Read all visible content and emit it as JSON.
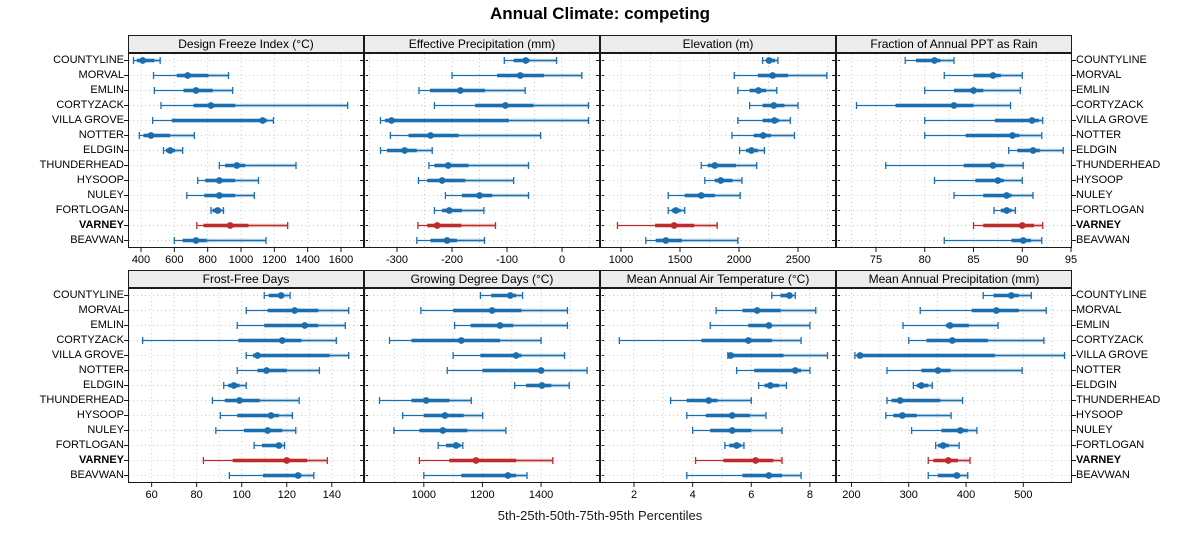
{
  "title": "Annual Climate: competing",
  "footer": "5th-25th-50th-75th-95th Percentiles",
  "colors": {
    "series": "#1b6fae",
    "highlight_series": "#bd2b2b",
    "strip_bg": "#ececec",
    "panel_border": "#1a1a1a",
    "grid": "#c8c8c8",
    "axis_text": "#000000"
  },
  "chart_data": {
    "type": "interval-dotplot",
    "title": "Annual Climate: competing",
    "footnote": "5th-25th-50th-75th-95th Percentiles",
    "percentiles": [
      "5th",
      "25th",
      "50th",
      "75th",
      "95th"
    ],
    "grid": true,
    "legend_position": "none",
    "categories": [
      "COUNTYLINE",
      "MORVAL",
      "EMLIN",
      "CORTYZACK",
      "VILLA GROVE",
      "NOTTER",
      "ELDGIN",
      "THUNDERHEAD",
      "HYSOOP",
      "NULEY",
      "FORTLOGAN",
      "VARNEY",
      "BEAVWAN"
    ],
    "highlight_category": "VARNEY",
    "panels": [
      {
        "title": "Design Freeze Index (°C)",
        "grid_row": 0,
        "grid_col": 0,
        "xlim": [
          322,
          1738
        ],
        "ticks": [
          400,
          600,
          800,
          1000,
          1200,
          1400,
          1600
        ],
        "grid_step": 200,
        "values": [
          [
            355,
            375,
            410,
            480,
            515
          ],
          [
            475,
            615,
            680,
            805,
            925
          ],
          [
            480,
            655,
            730,
            830,
            950
          ],
          [
            520,
            715,
            820,
            965,
            1640
          ],
          [
            470,
            585,
            1130,
            1155,
            1195
          ],
          [
            390,
            415,
            460,
            575,
            720
          ],
          [
            535,
            550,
            575,
            605,
            650
          ],
          [
            870,
            905,
            975,
            1025,
            1330
          ],
          [
            740,
            785,
            870,
            965,
            1105
          ],
          [
            675,
            780,
            870,
            965,
            1080
          ],
          [
            820,
            830,
            860,
            880,
            895
          ],
          [
            735,
            775,
            935,
            1045,
            1280
          ],
          [
            600,
            650,
            730,
            795,
            1150
          ]
        ]
      },
      {
        "title": "Effective Precipitation (mm)",
        "grid_row": 0,
        "grid_col": 1,
        "xlim": [
          -360,
          69
        ],
        "ticks": [
          -300,
          -200,
          -100,
          0
        ],
        "grid_step": 50,
        "values": [
          [
            -105,
            -88,
            -66,
            -59,
            -10
          ],
          [
            -200,
            -118,
            -76,
            -33,
            36
          ],
          [
            -260,
            -240,
            -185,
            -140,
            -67
          ],
          [
            -232,
            -158,
            -103,
            -52,
            48
          ],
          [
            -330,
            -322,
            -310,
            -97,
            48
          ],
          [
            -312,
            -279,
            -239,
            -188,
            -39
          ],
          [
            -330,
            -318,
            -286,
            -264,
            -236
          ],
          [
            -242,
            -232,
            -207,
            -170,
            -61
          ],
          [
            -261,
            -245,
            -218,
            -176,
            -88
          ],
          [
            -212,
            -182,
            -150,
            -127,
            -61
          ],
          [
            -232,
            -218,
            -205,
            -182,
            -142
          ],
          [
            -262,
            -245,
            -227,
            -183,
            -121
          ],
          [
            -264,
            -239,
            -209,
            -191,
            -141
          ]
        ]
      },
      {
        "title": "Elevation (m)",
        "grid_row": 0,
        "grid_col": 2,
        "xlim": [
          822,
          2822
        ],
        "ticks": [
          1000,
          1500,
          2000,
          2500
        ],
        "grid_step": 250,
        "values": [
          [
            2200,
            2230,
            2255,
            2305,
            2330
          ],
          [
            1960,
            2160,
            2285,
            2415,
            2745
          ],
          [
            1990,
            2090,
            2165,
            2230,
            2320
          ],
          [
            2090,
            2200,
            2295,
            2385,
            2500
          ],
          [
            1990,
            2200,
            2300,
            2340,
            2435
          ],
          [
            1940,
            2125,
            2205,
            2270,
            2470
          ],
          [
            2005,
            2060,
            2105,
            2160,
            2215
          ],
          [
            1680,
            1735,
            1795,
            1975,
            2150
          ],
          [
            1710,
            1795,
            1845,
            1945,
            2025
          ],
          [
            1400,
            1540,
            1680,
            1795,
            2010
          ],
          [
            1400,
            1430,
            1465,
            1505,
            1540
          ],
          [
            970,
            1290,
            1450,
            1620,
            1815
          ],
          [
            1210,
            1295,
            1380,
            1515,
            1990
          ]
        ]
      },
      {
        "title": "Fraction of Annual PPT as Rain",
        "grid_row": 0,
        "grid_col": 3,
        "xlim": [
          70.9,
          95.1
        ],
        "ticks": [
          75,
          80,
          85,
          90,
          95
        ],
        "grid_step": 2.5,
        "values": [
          [
            78,
            79.1,
            81,
            81.6,
            83
          ],
          [
            82,
            85,
            87,
            87.8,
            90
          ],
          [
            80,
            83,
            85,
            86,
            89.8
          ],
          [
            73,
            77,
            83,
            85,
            88.8
          ],
          [
            80,
            87.2,
            91,
            91.7,
            92.1
          ],
          [
            80,
            84.2,
            89,
            89.7,
            92
          ],
          [
            88.6,
            89.5,
            91.1,
            91.8,
            94.2
          ],
          [
            76,
            84,
            87,
            88.1,
            90.1
          ],
          [
            81,
            85.2,
            87.5,
            88.1,
            90
          ],
          [
            83,
            86,
            88.4,
            88.9,
            91.1
          ],
          [
            87.1,
            87.8,
            88.4,
            88.9,
            89.3
          ],
          [
            85,
            86,
            90,
            91.2,
            92.1
          ],
          [
            82,
            88.9,
            90.1,
            90.9,
            92
          ]
        ]
      },
      {
        "title": "Frost-Free Days",
        "grid_row": 1,
        "grid_col": 0,
        "xlim": [
          49.5,
          154.3
        ],
        "ticks": [
          60,
          80,
          100,
          120,
          140
        ],
        "grid_step": 10,
        "values": [
          [
            110,
            112,
            117.5,
            119,
            121.5
          ],
          [
            102,
            111.5,
            123.5,
            134,
            147.5
          ],
          [
            98,
            110,
            128,
            134,
            146
          ],
          [
            56,
            98.5,
            118,
            126.5,
            142
          ],
          [
            102,
            105,
            107,
            139,
            147.5
          ],
          [
            98,
            107,
            111,
            120,
            134.5
          ],
          [
            92,
            94,
            96.5,
            99,
            102
          ],
          [
            87,
            92.5,
            99,
            108,
            125.5
          ],
          [
            90.5,
            98,
            113,
            116.5,
            122.5
          ],
          [
            88.5,
            101,
            111.5,
            118,
            124
          ],
          [
            105.5,
            109,
            116.5,
            117.5,
            119
          ],
          [
            83,
            96,
            120,
            129,
            138
          ],
          [
            94.5,
            109.5,
            125,
            126.5,
            132
          ]
        ]
      },
      {
        "title": "Growing Degree Days (°C)",
        "grid_row": 1,
        "grid_col": 1,
        "xlim": [
          796,
          1601
        ],
        "ticks": [
          1000,
          1200,
          1400
        ],
        "grid_step": 100,
        "values": [
          [
            1193,
            1230,
            1295,
            1315,
            1337
          ],
          [
            990,
            1100,
            1233,
            1333,
            1490
          ],
          [
            1105,
            1160,
            1260,
            1305,
            1490
          ],
          [
            883,
            958,
            1128,
            1260,
            1400
          ],
          [
            1100,
            1193,
            1315,
            1333,
            1480
          ],
          [
            1080,
            1200,
            1400,
            1410,
            1557
          ],
          [
            1310,
            1349,
            1403,
            1435,
            1496
          ],
          [
            849,
            958,
            1008,
            1087,
            1162
          ],
          [
            928,
            1000,
            1072,
            1136,
            1201
          ],
          [
            898,
            985,
            1065,
            1148,
            1280
          ],
          [
            1049,
            1076,
            1110,
            1125,
            1133
          ],
          [
            985,
            1087,
            1178,
            1315,
            1440
          ],
          [
            1000,
            1128,
            1287,
            1315,
            1352
          ]
        ]
      },
      {
        "title": "Mean Annual Air Temperature (°C)",
        "grid_row": 1,
        "grid_col": 2,
        "xlim": [
          0.84,
          8.89
        ],
        "ticks": [
          2,
          4,
          6,
          8
        ],
        "grid_step": 1,
        "values": [
          [
            6.7,
            7.0,
            7.3,
            7.4,
            7.5
          ],
          [
            4.8,
            5.7,
            6.2,
            7.0,
            8.2
          ],
          [
            4.6,
            5.9,
            6.6,
            6.7,
            8.0
          ],
          [
            1.5,
            4.3,
            5.9,
            6.7,
            7.7
          ],
          [
            5.2,
            5.25,
            5.3,
            7.1,
            8.6
          ],
          [
            5.5,
            6.1,
            7.5,
            7.7,
            8.0
          ],
          [
            6.25,
            6.45,
            6.65,
            6.95,
            7.2
          ],
          [
            3.25,
            3.8,
            4.55,
            4.85,
            6.0
          ],
          [
            3.8,
            4.45,
            5.35,
            5.95,
            6.5
          ],
          [
            4.0,
            4.6,
            5.35,
            6.0,
            7.05
          ],
          [
            5.1,
            5.25,
            5.5,
            5.65,
            5.75
          ],
          [
            4.1,
            5.05,
            6.15,
            6.75,
            7.05
          ],
          [
            3.8,
            5.7,
            6.6,
            7.05,
            7.7
          ]
        ]
      },
      {
        "title": "Mean Annual Precipitation (mm)",
        "grid_row": 1,
        "grid_col": 3,
        "xlim": [
          173,
          585
        ],
        "ticks": [
          200,
          300,
          400,
          500
        ],
        "grid_step": 50,
        "values": [
          [
            430,
            448,
            479,
            492,
            514
          ],
          [
            320,
            410,
            453,
            492,
            540
          ],
          [
            290,
            365,
            372,
            405,
            456
          ],
          [
            300,
            331,
            376,
            438,
            536
          ],
          [
            206,
            209,
            215,
            450,
            572
          ],
          [
            262,
            322,
            351,
            373,
            498
          ],
          [
            308,
            314,
            322,
            334,
            341
          ],
          [
            262,
            270,
            285,
            355,
            394
          ],
          [
            260,
            273,
            289,
            314,
            374
          ],
          [
            305,
            357,
            390,
            403,
            419
          ],
          [
            347,
            351,
            360,
            370,
            388
          ],
          [
            334,
            343,
            369,
            386,
            407
          ],
          [
            334,
            351,
            384,
            390,
            403
          ]
        ]
      }
    ]
  }
}
